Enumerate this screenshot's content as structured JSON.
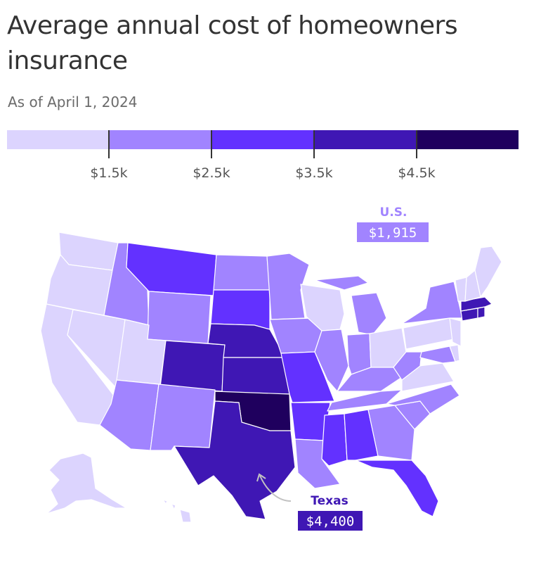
{
  "header": {
    "title": "Average annual cost of homeowners insurance",
    "subtitle": "As of April 1, 2024"
  },
  "legend": {
    "colors": [
      "#dcd4fe",
      "#a184ff",
      "#6331ff",
      "#3f17b4",
      "#1f005e"
    ],
    "ticks": [
      "$1.5k",
      "$2.5k",
      "$3.5k",
      "$4.5k"
    ]
  },
  "callouts": {
    "us": {
      "label": "U.S.",
      "value": "$1,915",
      "color": "#a184ff"
    },
    "texas": {
      "label": "Texas",
      "value": "$4,400",
      "color": "#3f17b4"
    }
  },
  "map": {
    "bin_by_state": {
      "WA": 0,
      "OR": 0,
      "CA": 0,
      "NV": 0,
      "UT": 0,
      "AK": 0,
      "HI": 0,
      "WI": 0,
      "OH": 0,
      "PA": 0,
      "NJ": 0,
      "VA": 0,
      "VT": 0,
      "NH": 0,
      "ME": 0,
      "DE": 0,
      "ID": 1,
      "WY": 1,
      "AZ": 1,
      "NM": 1,
      "ND": 1,
      "MN": 1,
      "IA": 1,
      "IL": 1,
      "MI": 1,
      "IN": 1,
      "KY": 1,
      "TN": 1,
      "WV": 1,
      "NY": 1,
      "LA": 1,
      "GA": 1,
      "SC": 1,
      "NC": 1,
      "MD": 1,
      "MT": 2,
      "SD": 2,
      "MO": 2,
      "AR": 2,
      "MS": 2,
      "AL": 2,
      "FL": 2,
      "CT": 3,
      "MA": 3,
      "RI": 3,
      "CO": 3,
      "NE": 3,
      "KS": 3,
      "TX": 3,
      "OK": 4
    }
  }
}
